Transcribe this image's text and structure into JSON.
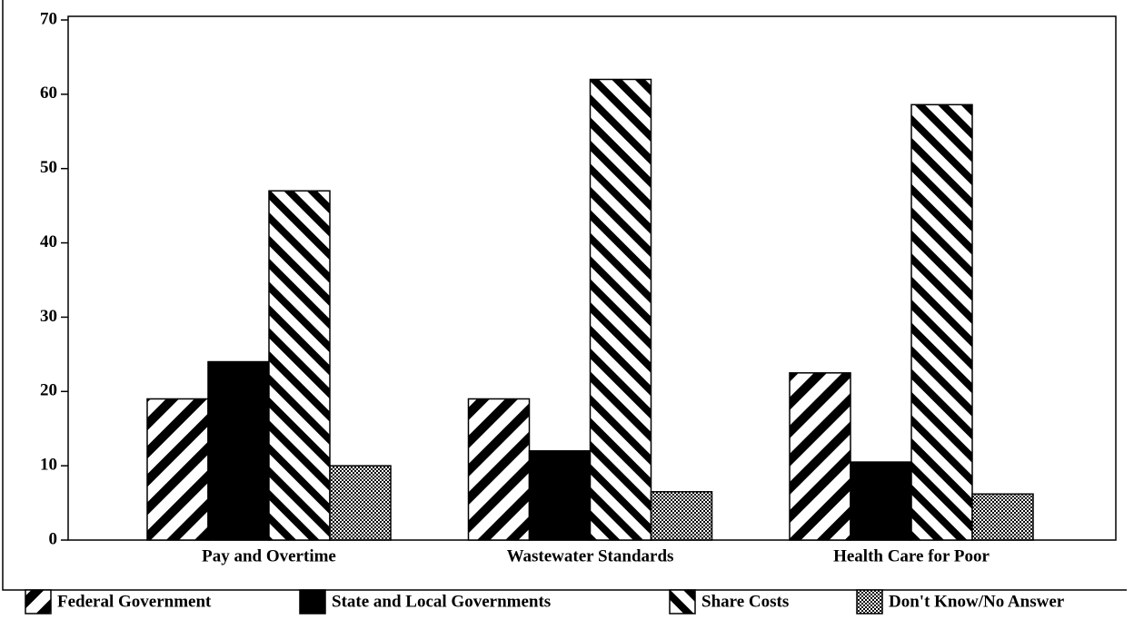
{
  "chart_data": {
    "type": "bar",
    "categories": [
      "Pay and Overtime",
      "Wastewater Standards",
      "Health Care for Poor"
    ],
    "series": [
      {
        "name": "Federal Government",
        "color": "#000000",
        "pattern": "forward-hatch",
        "values": [
          19,
          19,
          22.5
        ]
      },
      {
        "name": "State and Local Governments",
        "color": "#000000",
        "pattern": "solid",
        "values": [
          24,
          12,
          10.5
        ]
      },
      {
        "name": "Share Costs",
        "color": "#000000",
        "pattern": "back-hatch",
        "values": [
          47,
          62,
          58.6
        ]
      },
      {
        "name": "Don't Know/No Answer",
        "color": "#000000",
        "pattern": "dots",
        "values": [
          10,
          6.5,
          6.2
        ]
      }
    ],
    "ylim": [
      0,
      70
    ],
    "yticks": [
      0,
      10,
      20,
      30,
      40,
      50,
      60,
      70
    ],
    "grid": false,
    "legend": "bottom"
  }
}
